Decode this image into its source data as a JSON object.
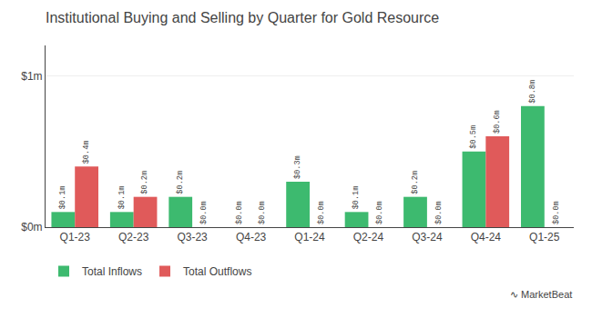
{
  "chart_data": {
    "type": "bar",
    "title": "Institutional Buying and Selling by Quarter for Gold Resource",
    "categories": [
      "Q1-23",
      "Q2-23",
      "Q3-23",
      "Q4-23",
      "Q1-24",
      "Q2-24",
      "Q3-24",
      "Q4-24",
      "Q1-25"
    ],
    "series": [
      {
        "name": "Total Inflows",
        "color": "#3dba6f",
        "values": [
          0.1,
          0.1,
          0.2,
          0.0,
          0.3,
          0.1,
          0.2,
          0.5,
          0.8
        ],
        "value_labels": [
          "$0.1m",
          "$0.1m",
          "$0.2m",
          "$0.0m",
          "$0.3m",
          "$0.1m",
          "$0.2m",
          "$0.5m",
          "$0.8m"
        ]
      },
      {
        "name": "Total Outflows",
        "color": "#e05a5a",
        "values": [
          0.4,
          0.2,
          0.0,
          0.0,
          0.0,
          0.0,
          0.0,
          0.6,
          0.0
        ],
        "value_labels": [
          "$0.4m",
          "$0.2m",
          "$0.0m",
          "$0.0m",
          "$0.0m",
          "$0.0m",
          "$0.0m",
          "$0.6m",
          "$0.0m"
        ]
      }
    ],
    "ylim": [
      0,
      1.2
    ],
    "yticks": [
      {
        "value": 0,
        "label": "$0m"
      },
      {
        "value": 1,
        "label": "$1m"
      }
    ],
    "grid": true,
    "legend": "bottom left",
    "data_labels": true,
    "annotations": [
      "∿",
      "MarketBeat"
    ]
  }
}
